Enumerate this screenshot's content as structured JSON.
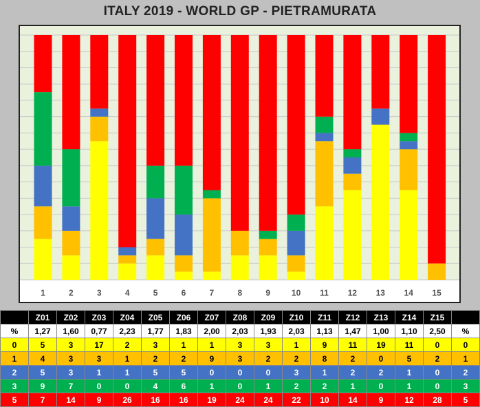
{
  "title": "ITALY 2019 - WORLD GP - PIETRAMURATA",
  "chart_data": {
    "type": "bar",
    "stacked": true,
    "categories": [
      "1",
      "2",
      "3",
      "4",
      "5",
      "6",
      "7",
      "8",
      "9",
      "10",
      "11",
      "12",
      "13",
      "14",
      "15"
    ],
    "series": [
      {
        "key": "0",
        "color": "#ffff00",
        "values": [
          5,
          3,
          17,
          2,
          3,
          1,
          1,
          3,
          3,
          1,
          9,
          11,
          19,
          11,
          0
        ]
      },
      {
        "key": "1",
        "color": "#ffc000",
        "values": [
          4,
          3,
          3,
          1,
          2,
          2,
          9,
          3,
          2,
          2,
          8,
          2,
          0,
          5,
          2
        ]
      },
      {
        "key": "2",
        "color": "#4472c4",
        "values": [
          5,
          3,
          1,
          1,
          5,
          5,
          0,
          0,
          0,
          3,
          1,
          2,
          2,
          1,
          0
        ]
      },
      {
        "key": "3",
        "color": "#00b050",
        "values": [
          9,
          7,
          0,
          0,
          4,
          6,
          1,
          0,
          1,
          2,
          2,
          1,
          0,
          1,
          0
        ]
      },
      {
        "key": "5",
        "color": "#ff0000",
        "values": [
          7,
          14,
          9,
          26,
          16,
          16,
          19,
          24,
          24,
          22,
          10,
          14,
          9,
          12,
          28
        ]
      }
    ],
    "ylim": [
      0,
      30
    ],
    "grid": true,
    "plot_background": "#eaf1dd"
  },
  "table": {
    "header": [
      "",
      "Z01",
      "Z02",
      "Z03",
      "Z04",
      "Z05",
      "Z06",
      "Z07",
      "Z08",
      "Z09",
      "Z10",
      "Z11",
      "Z12",
      "Z13",
      "Z14",
      "Z15",
      ""
    ],
    "rows": [
      {
        "cls": "pct",
        "cells": [
          "%",
          "1,27",
          "1,60",
          "0,77",
          "2,23",
          "1,77",
          "1,83",
          "2,00",
          "2,03",
          "1,93",
          "2,03",
          "1,13",
          "1,47",
          "1,00",
          "1,10",
          "2,50",
          "%"
        ]
      },
      {
        "cls": "c0",
        "cells": [
          "0",
          "5",
          "3",
          "17",
          "2",
          "3",
          "1",
          "1",
          "3",
          "3",
          "1",
          "9",
          "11",
          "19",
          "11",
          "0",
          "0"
        ]
      },
      {
        "cls": "c1",
        "cells": [
          "1",
          "4",
          "3",
          "3",
          "1",
          "2",
          "2",
          "9",
          "3",
          "2",
          "2",
          "8",
          "2",
          "0",
          "5",
          "2",
          "1"
        ]
      },
      {
        "cls": "c2",
        "cells": [
          "2",
          "5",
          "3",
          "1",
          "1",
          "5",
          "5",
          "0",
          "0",
          "0",
          "3",
          "1",
          "2",
          "2",
          "1",
          "0",
          "2"
        ]
      },
      {
        "cls": "c3",
        "cells": [
          "3",
          "9",
          "7",
          "0",
          "0",
          "4",
          "6",
          "1",
          "0",
          "1",
          "2",
          "2",
          "1",
          "0",
          "1",
          "0",
          "3"
        ]
      },
      {
        "cls": "c5",
        "cells": [
          "5",
          "7",
          "14",
          "9",
          "26",
          "16",
          "16",
          "19",
          "24",
          "24",
          "22",
          "10",
          "14",
          "9",
          "12",
          "28",
          "5"
        ]
      }
    ]
  }
}
